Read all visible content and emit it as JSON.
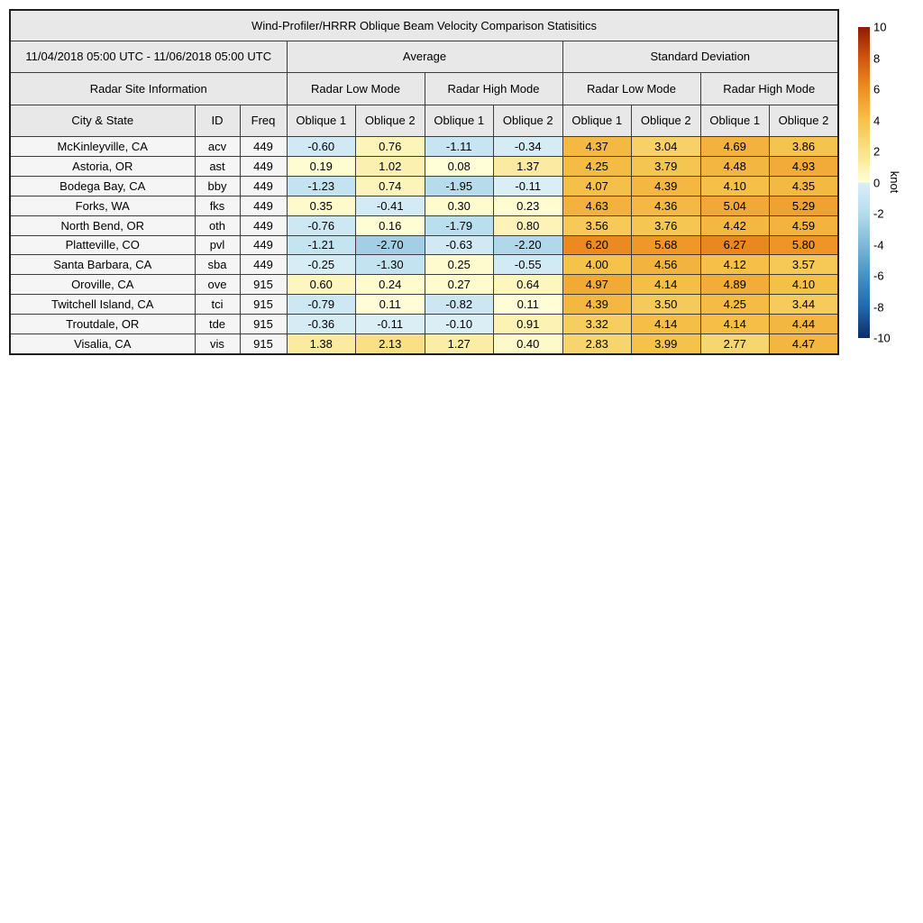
{
  "chart_data": {
    "type": "heatmap",
    "title": "Wind-Profiler/HRRR Oblique Beam Velocity Comparison Statisitics",
    "date_range": "11/04/2018 05:00 UTC - 11/06/2018 05:00 UTC",
    "site_info_header": "Radar Site Information",
    "group_headers": [
      "Average",
      "Standard Deviation"
    ],
    "mode_headers": [
      "Radar Low Mode",
      "Radar High Mode",
      "Radar Low Mode",
      "Radar High Mode"
    ],
    "column_headers": [
      "City & State",
      "ID",
      "Freq",
      "Oblique 1",
      "Oblique 2",
      "Oblique 1",
      "Oblique 2",
      "Oblique 1",
      "Oblique 2",
      "Oblique 1",
      "Oblique 2"
    ],
    "rows": [
      {
        "city": "McKinleyville, CA",
        "id": "acv",
        "freq": 449,
        "values": [
          -0.6,
          0.76,
          -1.11,
          -0.34,
          4.37,
          3.04,
          4.69,
          3.86
        ]
      },
      {
        "city": "Astoria, OR",
        "id": "ast",
        "freq": 449,
        "values": [
          0.19,
          1.02,
          0.08,
          1.37,
          4.25,
          3.79,
          4.48,
          4.93
        ]
      },
      {
        "city": "Bodega Bay, CA",
        "id": "bby",
        "freq": 449,
        "values": [
          -1.23,
          0.74,
          -1.95,
          -0.11,
          4.07,
          4.39,
          4.1,
          4.35
        ]
      },
      {
        "city": "Forks, WA",
        "id": "fks",
        "freq": 449,
        "values": [
          0.35,
          -0.41,
          0.3,
          0.23,
          4.63,
          4.36,
          5.04,
          5.29
        ]
      },
      {
        "city": "North Bend, OR",
        "id": "oth",
        "freq": 449,
        "values": [
          -0.76,
          0.16,
          -1.79,
          0.8,
          3.56,
          3.76,
          4.42,
          4.59
        ]
      },
      {
        "city": "Platteville, CO",
        "id": "pvl",
        "freq": 449,
        "values": [
          -1.21,
          -2.7,
          -0.63,
          -2.2,
          6.2,
          5.68,
          6.27,
          5.8
        ]
      },
      {
        "city": "Santa Barbara, CA",
        "id": "sba",
        "freq": 449,
        "values": [
          -0.25,
          -1.3,
          0.25,
          -0.55,
          4.0,
          4.56,
          4.12,
          3.57
        ]
      },
      {
        "city": "Oroville, CA",
        "id": "ove",
        "freq": 915,
        "values": [
          0.6,
          0.24,
          0.27,
          0.64,
          4.97,
          4.14,
          4.89,
          4.1
        ]
      },
      {
        "city": "Twitchell Island, CA",
        "id": "tci",
        "freq": 915,
        "values": [
          -0.79,
          0.11,
          -0.82,
          0.11,
          4.39,
          3.5,
          4.25,
          3.44
        ]
      },
      {
        "city": "Troutdale, OR",
        "id": "tde",
        "freq": 915,
        "values": [
          -0.36,
          -0.11,
          -0.1,
          0.91,
          3.32,
          4.14,
          4.14,
          4.44
        ]
      },
      {
        "city": "Visalia, CA",
        "id": "vis",
        "freq": 915,
        "values": [
          1.38,
          2.13,
          1.27,
          0.4,
          2.83,
          3.99,
          2.77,
          4.47
        ]
      }
    ],
    "colorbar": {
      "label": "knot",
      "min": -10,
      "max": 10,
      "ticks": [
        10,
        8,
        6,
        4,
        2,
        0,
        -2,
        -4,
        -6,
        -8,
        -10
      ],
      "colormap": {
        "negative": [
          [
            -10,
            "#0b2f63"
          ],
          [
            -8,
            "#2268ae"
          ],
          [
            -6,
            "#4792c2"
          ],
          [
            -4,
            "#7fb8d8"
          ],
          [
            -2,
            "#b5dcec"
          ],
          [
            0,
            "#dceff7"
          ]
        ],
        "positive": [
          [
            0,
            "#ffffd9"
          ],
          [
            2,
            "#f9e288"
          ],
          [
            4,
            "#f5c24a"
          ],
          [
            6,
            "#ee9023"
          ],
          [
            8,
            "#d2550e"
          ],
          [
            10,
            "#8c1c06"
          ]
        ]
      }
    }
  }
}
